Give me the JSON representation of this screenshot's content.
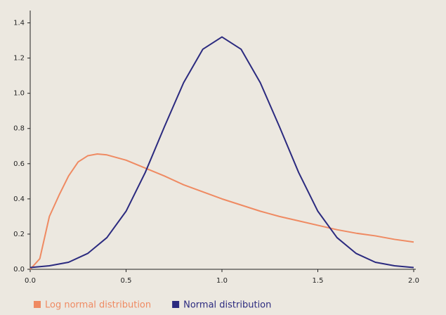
{
  "chart_data": {
    "type": "line",
    "xlim": [
      0,
      2
    ],
    "ylim": [
      0,
      1.47
    ],
    "xticks": [
      {
        "value": 0,
        "label": "0.0"
      },
      0.5,
      {
        "value": 1,
        "label": "1.0"
      },
      1.5,
      {
        "value": 2,
        "label": "2.0"
      }
    ],
    "yticks": [
      {
        "value": 0,
        "label": "0.0"
      },
      0.2,
      0.4,
      0.6,
      0.8,
      {
        "value": 1,
        "label": "1.0"
      },
      1.2,
      1.4
    ],
    "grid": false,
    "legend": "bottom",
    "series": [
      {
        "name": "Log normal distribution",
        "color": "#ef8a62",
        "x": [
          0,
          0.05,
          0.1,
          0.15,
          0.2,
          0.25,
          0.3,
          0.35,
          0.4,
          0.5,
          0.6,
          0.7,
          0.8,
          0.9,
          1.0,
          1.1,
          1.2,
          1.3,
          1.4,
          1.5,
          1.6,
          1.7,
          1.8,
          1.9,
          2.0
        ],
        "values": [
          0,
          0.06,
          0.3,
          0.42,
          0.53,
          0.61,
          0.645,
          0.655,
          0.65,
          0.62,
          0.575,
          0.53,
          0.48,
          0.44,
          0.4,
          0.365,
          0.33,
          0.3,
          0.275,
          0.25,
          0.225,
          0.205,
          0.19,
          0.17,
          0.155
        ]
      },
      {
        "name": "Normal distribution",
        "color": "#2b2a7f",
        "x": [
          0,
          0.1,
          0.2,
          0.3,
          0.4,
          0.5,
          0.6,
          0.7,
          0.8,
          0.9,
          1.0,
          1.1,
          1.2,
          1.3,
          1.4,
          1.5,
          1.6,
          1.7,
          1.8,
          1.9,
          2.0
        ],
        "values": [
          0.01,
          0.02,
          0.04,
          0.09,
          0.18,
          0.33,
          0.55,
          0.81,
          1.06,
          1.25,
          1.32,
          1.25,
          1.06,
          0.81,
          0.55,
          0.33,
          0.18,
          0.09,
          0.04,
          0.02,
          0.01
        ]
      }
    ]
  }
}
